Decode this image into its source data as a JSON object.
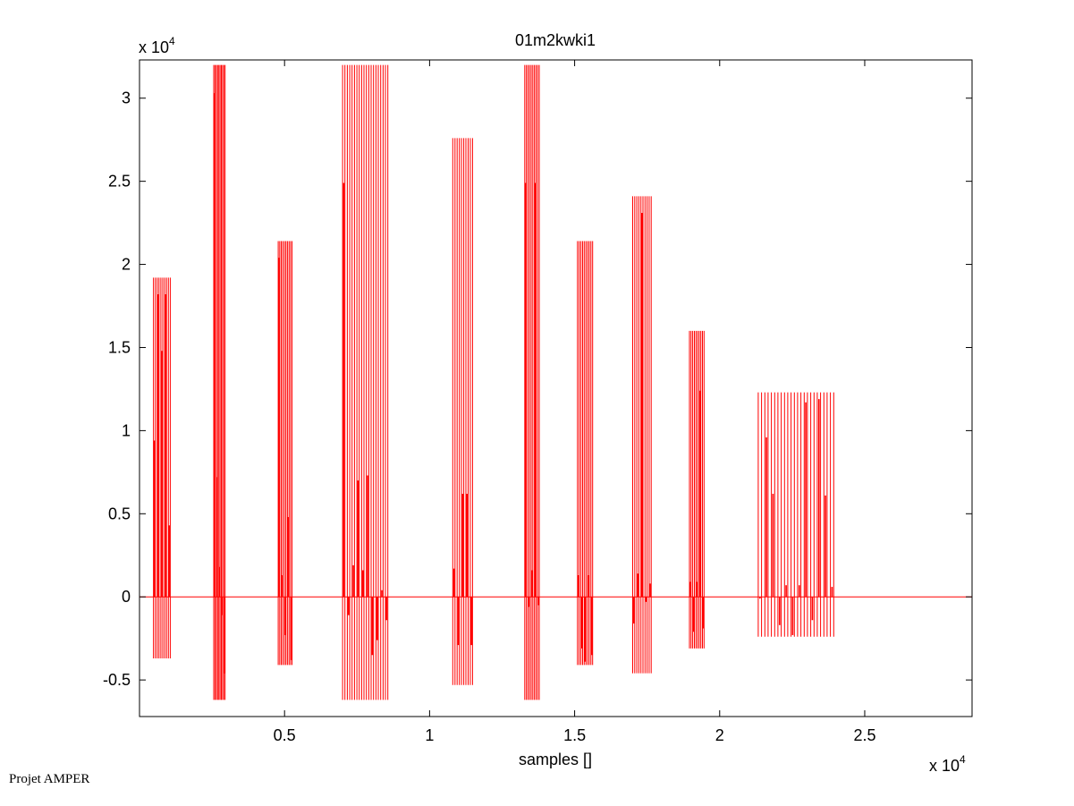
{
  "chart_data": {
    "type": "line",
    "title": "01m2kwki1",
    "xlabel": "samples []",
    "ylabel": "",
    "x_exponent_label": "x 10",
    "x_exponent_power": "4",
    "y_exponent_label": "x 10",
    "y_exponent_power": "4",
    "xlim": [
      0,
      28700
    ],
    "ylim": [
      -7200,
      32300
    ],
    "x_ticks": [
      5000,
      10000,
      15000,
      20000,
      25000
    ],
    "x_tick_labels": [
      "0.5",
      "1",
      "1.5",
      "2",
      "2.5"
    ],
    "y_ticks": [
      -5000,
      0,
      5000,
      10000,
      15000,
      20000,
      25000,
      30000
    ],
    "y_tick_labels": [
      "-0.5",
      "0",
      "0.5",
      "1",
      "1.5",
      "2",
      "2.5",
      "3"
    ],
    "grid": false,
    "series_color": "#ff0000",
    "baseline": 0,
    "series": [
      {
        "segments": [
          {
            "x_start": 480,
            "x_end": 1060,
            "max": 19200,
            "min": -3700,
            "spikes": [
              9400,
              18200,
              14800,
              18200,
              4300
            ]
          },
          {
            "x_start": 2560,
            "x_end": 2950,
            "max": 32000,
            "min": -6200,
            "spikes": [
              30300,
              7200,
              1800,
              -1100,
              -4600
            ]
          },
          {
            "x_start": 4780,
            "x_end": 5260,
            "max": 21400,
            "min": -4100,
            "spikes": [
              20400,
              1300,
              -2300,
              4800,
              -3800
            ]
          },
          {
            "x_start": 7000,
            "x_end": 8560,
            "max": 32000,
            "min": -6200,
            "spikes": [
              24900,
              -1100,
              1900,
              7000,
              1600,
              7300,
              -3500,
              -2600,
              400,
              -1400
            ]
          },
          {
            "x_start": 10800,
            "x_end": 11480,
            "max": 27600,
            "min": -5300,
            "spikes": [
              1700,
              -2900,
              6200,
              6200,
              -2900
            ]
          },
          {
            "x_start": 13280,
            "x_end": 13780,
            "max": 32000,
            "min": -6200,
            "spikes": [
              24900,
              -600,
              1600,
              24900,
              -500
            ]
          },
          {
            "x_start": 15100,
            "x_end": 15620,
            "max": 21400,
            "min": -4100,
            "spikes": [
              1300,
              -3100,
              -3900,
              1300,
              -3500
            ]
          },
          {
            "x_start": 17000,
            "x_end": 17640,
            "max": 24100,
            "min": -4600,
            "spikes": [
              -1600,
              1400,
              23100,
              -300,
              800
            ]
          },
          {
            "x_start": 18960,
            "x_end": 19460,
            "max": 16000,
            "min": -3100,
            "spikes": [
              900,
              -2100,
              900,
              12400,
              -1900
            ]
          },
          {
            "x_start": 21330,
            "x_end": 23930,
            "max": 12300,
            "min": -2400,
            "spikes": [
              -100,
              9600,
              6200,
              -1700,
              700,
              -2300,
              700,
              11700,
              -1400,
              11900,
              6100,
              600
            ]
          }
        ]
      }
    ]
  },
  "footer": {
    "text": "Projet AMPER"
  }
}
